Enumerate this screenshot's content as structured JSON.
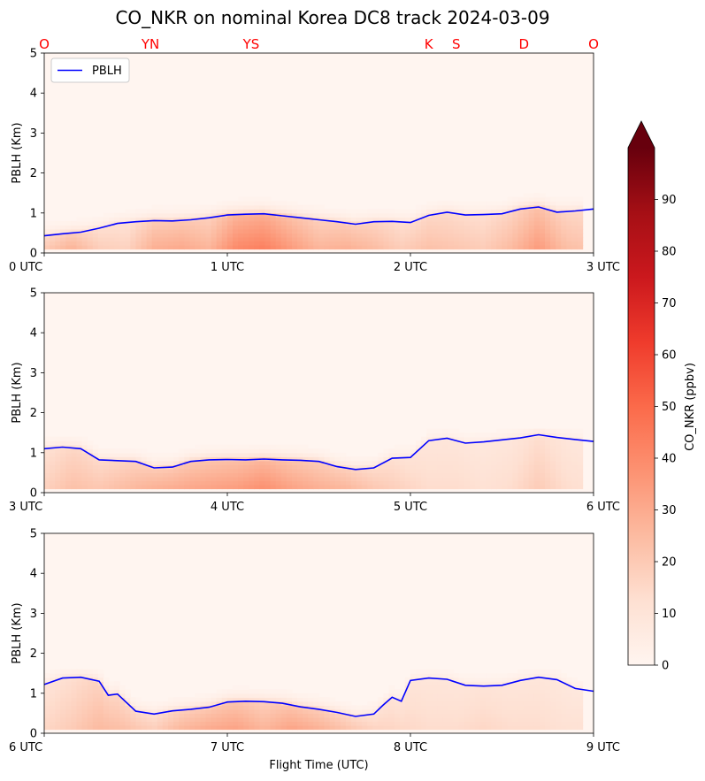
{
  "title": "CO_NKR on nominal Korea DC8 track 2024-03-09",
  "colors": {
    "pblh_line": "#0000ff",
    "site_label": "#ff0000",
    "cmap_low": "#fff5f0",
    "cmap_high": "#67000d"
  },
  "chart_data": {
    "type": "heatmap",
    "legend": {
      "label": "PBLH",
      "placement": "top-left"
    },
    "ylabel": "PBLH (Km)",
    "xlabel": "Flight Time (UTC)",
    "ylim": [
      0,
      5
    ],
    "yticks": [
      "0",
      "1",
      "2",
      "3",
      "4",
      "5"
    ],
    "colorbar": {
      "label": "CO_NKR (ppbv)",
      "range": [
        0,
        100
      ],
      "extend": "max",
      "ticks": [
        "0",
        "10",
        "20",
        "30",
        "40",
        "50",
        "60",
        "70",
        "80",
        "90"
      ]
    },
    "site_labels": [
      {
        "label": "O",
        "time": 0.0
      },
      {
        "label": "YN",
        "time": 0.58
      },
      {
        "label": "YS",
        "time": 1.13
      },
      {
        "label": "K",
        "time": 2.1
      },
      {
        "label": "S",
        "time": 2.25
      },
      {
        "label": "D",
        "time": 2.62
      },
      {
        "label": "O",
        "time": 3.0
      }
    ],
    "panels": [
      {
        "xlim": [
          0,
          3
        ],
        "xticks": [
          "0 UTC",
          "1 UTC",
          "2 UTC",
          "3 UTC"
        ],
        "pblh": {
          "t": [
            0.0,
            0.1,
            0.2,
            0.3,
            0.4,
            0.5,
            0.6,
            0.7,
            0.8,
            0.9,
            1.0,
            1.1,
            1.2,
            1.3,
            1.4,
            1.5,
            1.6,
            1.7,
            1.8,
            1.9,
            2.0,
            2.1,
            2.2,
            2.3,
            2.4,
            2.5,
            2.6,
            2.7,
            2.8,
            2.9,
            3.0
          ],
          "h": [
            0.43,
            0.48,
            0.52,
            0.62,
            0.74,
            0.78,
            0.81,
            0.8,
            0.83,
            0.88,
            0.95,
            0.97,
            0.98,
            0.93,
            0.88,
            0.83,
            0.78,
            0.72,
            0.78,
            0.79,
            0.76,
            0.94,
            1.02,
            0.95,
            0.96,
            0.98,
            1.1,
            1.15,
            1.02,
            1.05,
            1.1
          ]
        },
        "co_profile": {
          "t": [
            0.0,
            0.15,
            0.3,
            0.45,
            0.6,
            0.75,
            0.9,
            1.05,
            1.2,
            1.35,
            1.5,
            1.65,
            1.8,
            1.95,
            2.1,
            2.25,
            2.4,
            2.55,
            2.7,
            2.85,
            3.0
          ],
          "surface": [
            22,
            30,
            20,
            18,
            30,
            32,
            28,
            42,
            45,
            36,
            28,
            30,
            26,
            20,
            24,
            22,
            20,
            26,
            36,
            25,
            22
          ]
        }
      },
      {
        "xlim": [
          3,
          6
        ],
        "xticks": [
          "3 UTC",
          "4 UTC",
          "5 UTC",
          "6 UTC"
        ],
        "pblh": {
          "t": [
            3.0,
            3.1,
            3.2,
            3.3,
            3.4,
            3.5,
            3.6,
            3.7,
            3.8,
            3.9,
            4.0,
            4.1,
            4.2,
            4.3,
            4.4,
            4.5,
            4.6,
            4.7,
            4.8,
            4.9,
            5.0,
            5.1,
            5.2,
            5.3,
            5.4,
            5.5,
            5.6,
            5.7,
            5.8,
            5.9,
            6.0
          ],
          "h": [
            1.1,
            1.14,
            1.1,
            0.82,
            0.8,
            0.78,
            0.62,
            0.64,
            0.78,
            0.82,
            0.83,
            0.82,
            0.84,
            0.82,
            0.81,
            0.78,
            0.65,
            0.58,
            0.62,
            0.86,
            0.88,
            1.3,
            1.36,
            1.24,
            1.27,
            1.32,
            1.37,
            1.45,
            1.38,
            1.33,
            1.28
          ]
        },
        "co_profile": {
          "t": [
            3.0,
            3.15,
            3.3,
            3.45,
            3.6,
            3.75,
            3.9,
            4.05,
            4.2,
            4.35,
            4.5,
            4.65,
            4.8,
            4.95,
            5.1,
            5.25,
            5.4,
            5.55,
            5.7,
            5.85,
            6.0
          ],
          "surface": [
            18,
            24,
            22,
            26,
            30,
            32,
            34,
            36,
            40,
            34,
            30,
            28,
            22,
            18,
            14,
            14,
            12,
            14,
            20,
            14,
            12
          ]
        }
      },
      {
        "xlim": [
          6,
          9
        ],
        "xticks": [
          "6 UTC",
          "7 UTC",
          "8 UTC",
          "9 UTC"
        ],
        "pblh": {
          "t": [
            6.0,
            6.1,
            6.2,
            6.3,
            6.35,
            6.4,
            6.5,
            6.6,
            6.7,
            6.8,
            6.9,
            7.0,
            7.1,
            7.2,
            7.3,
            7.4,
            7.5,
            7.6,
            7.7,
            7.8,
            7.85,
            7.9,
            7.95,
            8.0,
            8.1,
            8.2,
            8.3,
            8.4,
            8.5,
            8.6,
            8.7,
            8.8,
            8.9,
            9.0
          ],
          "h": [
            1.22,
            1.38,
            1.4,
            1.3,
            0.95,
            0.98,
            0.55,
            0.48,
            0.56,
            0.6,
            0.65,
            0.78,
            0.8,
            0.79,
            0.75,
            0.66,
            0.6,
            0.52,
            0.42,
            0.48,
            0.7,
            0.9,
            0.8,
            1.32,
            1.38,
            1.35,
            1.2,
            1.18,
            1.2,
            1.32,
            1.4,
            1.34,
            1.12,
            1.05
          ]
        },
        "co_profile": {
          "t": [
            6.0,
            6.15,
            6.3,
            6.45,
            6.6,
            6.75,
            6.9,
            7.05,
            7.2,
            7.35,
            7.5,
            7.65,
            7.8,
            7.95,
            8.1,
            8.25,
            8.4,
            8.55,
            8.7,
            8.85,
            9.0
          ],
          "surface": [
            16,
            20,
            26,
            24,
            20,
            28,
            32,
            34,
            28,
            34,
            30,
            24,
            18,
            16,
            14,
            14,
            16,
            14,
            14,
            12,
            12
          ]
        }
      }
    ]
  }
}
